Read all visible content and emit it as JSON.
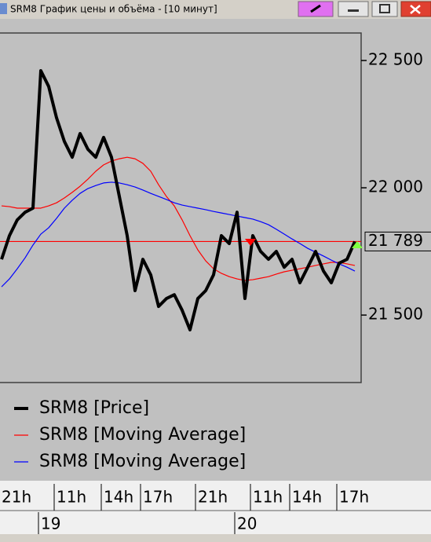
{
  "window": {
    "title": "SRM8 График цены и объёма - [10 минут]"
  },
  "chart_data": {
    "type": "line",
    "categories": [
      "21h",
      null,
      null,
      null,
      null,
      null,
      null,
      "11h",
      null,
      null,
      null,
      null,
      null,
      "14h",
      null,
      null,
      null,
      null,
      "17h",
      null,
      null,
      null,
      null,
      null,
      null,
      "21h",
      null,
      null,
      null,
      null,
      null,
      null,
      "11h",
      null,
      null,
      null,
      null,
      "14h",
      null,
      null,
      null,
      null,
      null,
      "17h",
      null,
      null
    ],
    "date_labels": [
      null,
      null,
      null,
      null,
      null,
      "19",
      null,
      null,
      null,
      null,
      null,
      null,
      null,
      null,
      null,
      null,
      null,
      null,
      null,
      null,
      null,
      null,
      null,
      null,
      null,
      null,
      null,
      null,
      null,
      null,
      "20",
      null,
      null,
      null,
      null,
      null,
      null,
      null,
      null,
      null,
      null,
      null,
      null,
      null,
      null,
      null
    ],
    "series": [
      {
        "name": "SRM8 [Price]",
        "color": "#000000",
        "values": [
          21719,
          21812,
          21874,
          21904,
          21920,
          22460,
          22398,
          22275,
          22182,
          22120,
          22213,
          22151,
          22120,
          22198,
          22120,
          21966,
          21812,
          21596,
          21719,
          21658,
          21534,
          21565,
          21580,
          21519,
          21442,
          21565,
          21596,
          21658,
          21812,
          21781,
          21904,
          21565,
          21812,
          21750,
          21719,
          21750,
          21688,
          21719,
          21627,
          21688,
          21750,
          21673,
          21627,
          21704,
          21719,
          21789
        ]
      },
      {
        "name": "SRM8 [Moving Average]",
        "color": "#ff0000",
        "values": [
          21929,
          21926,
          21920,
          21920,
          21920,
          21920,
          21929,
          21941,
          21960,
          21982,
          22006,
          22034,
          22065,
          22090,
          22105,
          22114,
          22120,
          22114,
          22096,
          22065,
          22012,
          21966,
          21929,
          21874,
          21812,
          21756,
          21713,
          21682,
          21664,
          21651,
          21642,
          21636,
          21639,
          21645,
          21651,
          21661,
          21670,
          21676,
          21682,
          21688,
          21695,
          21701,
          21707,
          21707,
          21701,
          21695
        ]
      },
      {
        "name": "SRM8 [Moving Average]",
        "color": "#0000ff",
        "values": [
          21611,
          21642,
          21682,
          21725,
          21775,
          21818,
          21843,
          21880,
          21920,
          21951,
          21978,
          21997,
          22009,
          22019,
          22022,
          22019,
          22012,
          22003,
          21991,
          21978,
          21966,
          21954,
          21941,
          21932,
          21926,
          21920,
          21914,
          21907,
          21901,
          21895,
          21889,
          21883,
          21877,
          21867,
          21855,
          21837,
          21818,
          21799,
          21781,
          21762,
          21747,
          21732,
          21716,
          21701,
          21688,
          21673
        ]
      }
    ],
    "last_price": {
      "value": 21789,
      "label": "21 789",
      "color": "#ff0000"
    },
    "ylim": [
      21235,
      22608
    ],
    "yticks": [
      {
        "value": 21500,
        "label": "21 500"
      },
      {
        "value": 22000,
        "label": "22 000"
      },
      {
        "value": 22500,
        "label": "22 500"
      }
    ]
  }
}
